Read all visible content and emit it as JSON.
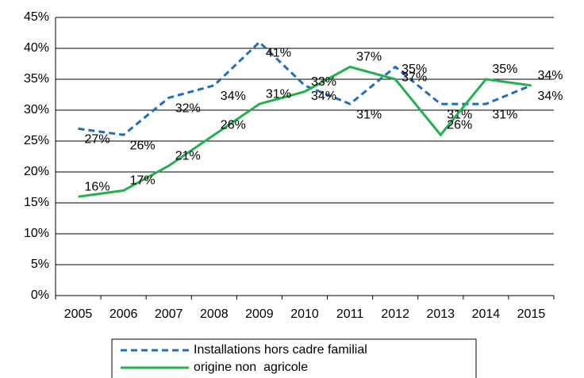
{
  "chart_data": {
    "type": "line",
    "categories": [
      "2005",
      "2006",
      "2007",
      "2008",
      "2009",
      "2010",
      "2011",
      "2012",
      "2013",
      "2014",
      "2015"
    ],
    "series": [
      {
        "name": "Installations hors cadre familial",
        "color": "#1f6fbf",
        "dash": true,
        "values": [
          27,
          26,
          32,
          34,
          41,
          34,
          31,
          37,
          31,
          31,
          34
        ],
        "value_labels": [
          "27%",
          "26%",
          "32%",
          "34%",
          "41%",
          "34%",
          "31%",
          "37%",
          "31%",
          "31%",
          "34%"
        ]
      },
      {
        "name": "origine non  agricole",
        "color": "#22b14c",
        "dash": false,
        "values": [
          16,
          17,
          21,
          26,
          31,
          33,
          37,
          35,
          26,
          35,
          34
        ],
        "value_labels": [
          "16%",
          "17%",
          "21%",
          "26%",
          "31%",
          "33%",
          "37%",
          "35%",
          "26%",
          "35%",
          "34%"
        ]
      }
    ],
    "ylim": [
      0,
      45
    ],
    "yticks": [
      {
        "value": 0,
        "label": "0%"
      },
      {
        "value": 5,
        "label": "5%"
      },
      {
        "value": 10,
        "label": "10%"
      },
      {
        "value": 15,
        "label": "15%"
      },
      {
        "value": 20,
        "label": "20%"
      },
      {
        "value": 25,
        "label": "25%"
      },
      {
        "value": 30,
        "label": "30%"
      },
      {
        "value": 35,
        "label": "35%"
      },
      {
        "value": 40,
        "label": "40%"
      },
      {
        "value": 45,
        "label": "45%"
      }
    ],
    "grid": true,
    "legend": "bottom"
  }
}
